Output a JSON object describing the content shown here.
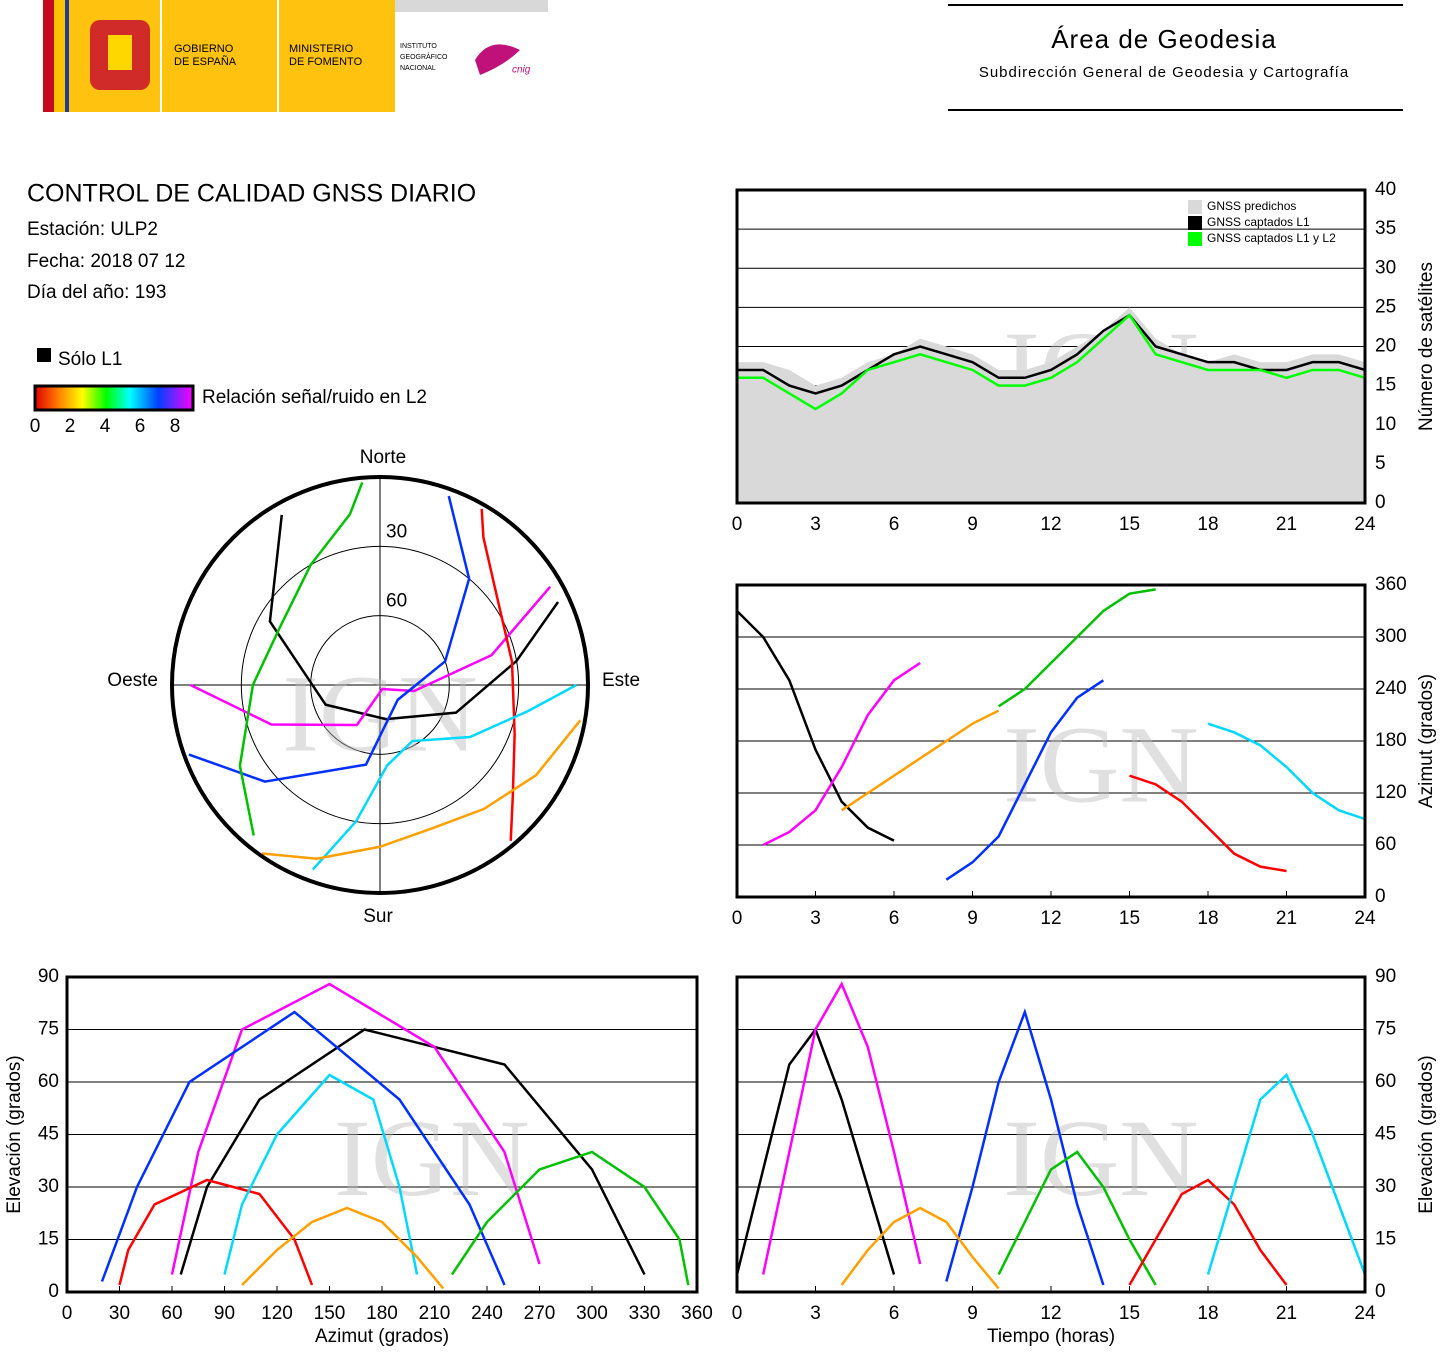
{
  "header": {
    "gobierno": [
      "GOBIERNO",
      "DE ESPAÑA"
    ],
    "ministerio": [
      "MINISTERIO",
      "DE FOMENTO"
    ],
    "instituto": [
      "INSTITUTO",
      "GEOGRÁFICO",
      "NACIONAL"
    ],
    "cnig": "cnig",
    "area": "Área de Geodesia",
    "subdireccion": "Subdirección General de Geodesia y Cartografía"
  },
  "report": {
    "title": "CONTROL DE CALIDAD GNSS DIARIO",
    "station": "Estación: ULP2",
    "date": "Fecha: 2018 07 12",
    "doy": "Día del año: 193",
    "l1_only": "Sólo L1",
    "colorbar": {
      "label": "Relación señal/ruido en L2",
      "lim": [
        0,
        8
      ],
      "ticks": [
        0,
        2,
        4,
        6,
        8
      ]
    }
  },
  "watermark": "IGN",
  "chart_data": [
    {
      "type": "line",
      "y_label": "Número de satélites",
      "x": [
        0,
        1,
        2,
        3,
        4,
        5,
        6,
        7,
        8,
        9,
        10,
        11,
        12,
        13,
        14,
        15,
        16,
        17,
        18,
        19,
        20,
        21,
        22,
        23,
        24
      ],
      "xlim": [
        0,
        24
      ],
      "xticks": [
        0,
        3,
        6,
        9,
        12,
        15,
        18,
        21,
        24
      ],
      "ylim": [
        0,
        40
      ],
      "yticks": [
        0,
        5,
        10,
        15,
        20,
        25,
        30,
        35,
        40
      ],
      "grid": true,
      "legend": "upper right",
      "series": [
        {
          "name": "GNSS predichos",
          "color": "#d9d9d9",
          "area": true,
          "values": [
            18,
            18,
            17,
            15,
            16,
            18,
            19,
            21,
            20,
            19,
            17,
            17,
            18,
            20,
            22,
            25,
            21,
            19,
            18,
            19,
            18,
            18,
            19,
            19,
            18
          ]
        },
        {
          "name": "GNSS captados L1",
          "color": "#000000",
          "values": [
            17,
            17,
            15,
            14,
            15,
            17,
            19,
            20,
            19,
            18,
            16,
            16,
            17,
            19,
            22,
            24,
            20,
            19,
            18,
            18,
            17,
            17,
            18,
            18,
            17
          ]
        },
        {
          "name": "GNSS captados L1 y L2",
          "color": "#00ff00",
          "values": [
            16,
            16,
            14,
            12,
            14,
            17,
            18,
            19,
            18,
            17,
            15,
            15,
            16,
            18,
            21,
            24,
            19,
            18,
            17,
            17,
            17,
            16,
            17,
            17,
            16
          ]
        }
      ]
    },
    {
      "type": "scatter",
      "y_label": "Azimut (grados)",
      "xlim": [
        0,
        24
      ],
      "xticks": [
        0,
        3,
        6,
        9,
        12,
        15,
        18,
        21,
        24
      ],
      "ylim": [
        0,
        360
      ],
      "yticks": [
        0,
        60,
        120,
        180,
        240,
        300,
        360
      ],
      "grid": true,
      "series": [
        {
          "color": "#000000",
          "x": [
            0,
            1,
            2,
            3,
            4,
            5,
            6
          ],
          "values": [
            330,
            300,
            250,
            170,
            110,
            80,
            65
          ],
          "elevation": [
            5,
            35,
            65,
            75,
            55,
            30,
            5
          ]
        },
        {
          "color": "#ff00ff",
          "x": [
            1,
            2,
            3,
            4,
            5,
            6,
            7
          ],
          "values": [
            60,
            75,
            100,
            150,
            210,
            250,
            270
          ],
          "elevation": [
            5,
            40,
            75,
            88,
            70,
            40,
            8
          ]
        },
        {
          "color": "#0030ff",
          "x": [
            8,
            9,
            10,
            11,
            12,
            13,
            14
          ],
          "values": [
            20,
            40,
            70,
            130,
            190,
            230,
            250
          ],
          "elevation": [
            3,
            30,
            60,
            80,
            55,
            25,
            2
          ]
        },
        {
          "color": "#00c000",
          "x": [
            10,
            11,
            12,
            13,
            14,
            15,
            16
          ],
          "values": [
            220,
            240,
            270,
            300,
            330,
            350,
            355
          ],
          "elevation": [
            5,
            20,
            35,
            40,
            30,
            15,
            2
          ]
        },
        {
          "color": "#ff0000",
          "x": [
            15,
            16,
            17,
            18,
            19,
            20,
            21
          ],
          "values": [
            140,
            130,
            110,
            80,
            50,
            35,
            30
          ],
          "elevation": [
            2,
            15,
            28,
            32,
            25,
            12,
            2
          ]
        },
        {
          "color": "#00d8ff",
          "x": [
            18,
            19,
            20,
            21,
            22,
            23,
            24
          ],
          "values": [
            200,
            190,
            175,
            150,
            120,
            100,
            90
          ],
          "elevation": [
            5,
            30,
            55,
            62,
            45,
            25,
            5
          ]
        },
        {
          "color": "#ffa000",
          "x": [
            4,
            5,
            6,
            7,
            8,
            9,
            10
          ],
          "values": [
            100,
            120,
            140,
            160,
            180,
            200,
            215
          ],
          "elevation": [
            2,
            12,
            20,
            24,
            20,
            10,
            1
          ]
        }
      ]
    },
    {
      "type": "scatter",
      "x_label": "Azimut (grados)",
      "y_label": "Elevación (grados)",
      "xlim": [
        0,
        360
      ],
      "xticks": [
        0,
        30,
        60,
        90,
        120,
        150,
        180,
        210,
        240,
        270,
        300,
        330,
        360
      ],
      "ylim": [
        0,
        90
      ],
      "yticks": [
        0,
        15,
        30,
        45,
        60,
        75,
        90
      ],
      "grid": true
    },
    {
      "type": "scatter",
      "x_label": "Tiempo (horas)",
      "y_label": "Elevación (grados)",
      "xlim": [
        0,
        24
      ],
      "xticks": [
        0,
        3,
        6,
        9,
        12,
        15,
        18,
        21,
        24
      ],
      "ylim": [
        0,
        90
      ],
      "yticks": [
        0,
        15,
        30,
        45,
        60,
        75,
        90
      ],
      "grid": true
    },
    {
      "type": "polar",
      "labels": {
        "north": "Norte",
        "south": "Sur",
        "east": "Este",
        "west": "Oeste"
      },
      "rlim": [
        90,
        0
      ],
      "rings": [
        30,
        60
      ]
    }
  ]
}
